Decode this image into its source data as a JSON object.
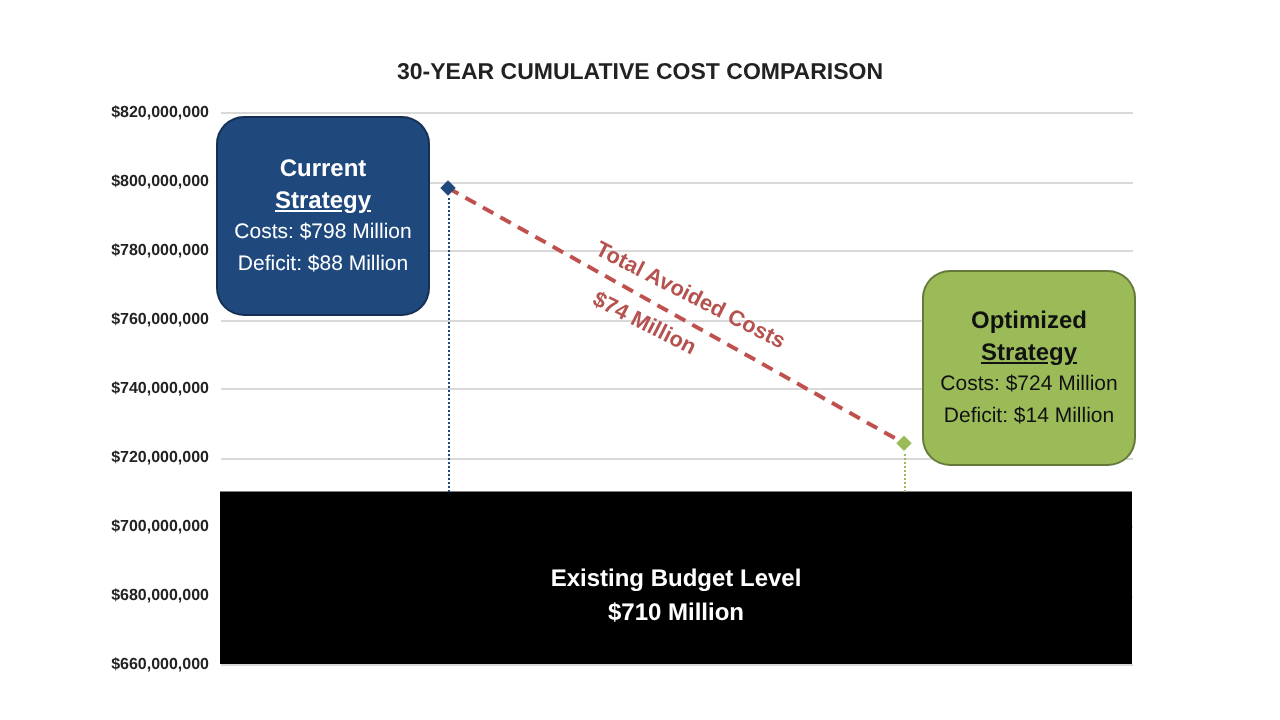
{
  "chart_data": {
    "type": "scatter",
    "title": "30-YEAR CUMULATIVE COST COMPARISON",
    "categories": [
      null,
      null
    ],
    "series": [
      {
        "type": "line",
        "color": "#c0504d",
        "values": [
          798000000,
          724000000
        ],
        "line_style": "dashed",
        "marker": "none"
      },
      {
        "type": "scatter",
        "colors": [
          "#1f497d",
          "#9bbb59"
        ],
        "values": [
          798000000,
          724000000
        ],
        "marker": "diamond"
      }
    ],
    "ylim": [
      660000000,
      820000000
    ],
    "yticks": [
      {
        "value": 660000000,
        "label": "$660,000,000"
      },
      {
        "value": 680000000,
        "label": "$680,000,000"
      },
      {
        "value": 700000000,
        "label": "$700,000,000"
      },
      {
        "value": 720000000,
        "label": "$720,000,000"
      },
      {
        "value": 740000000,
        "label": "$740,000,000"
      },
      {
        "value": 760000000,
        "label": "$760,000,000"
      },
      {
        "value": 780000000,
        "label": "$780,000,000"
      },
      {
        "value": 800000000,
        "label": "$800,000,000"
      },
      {
        "value": 820000000,
        "label": "$820,000,000"
      }
    ],
    "grid": "y",
    "bands": [
      {
        "axis": "y",
        "from": 660000000,
        "to": 710000000,
        "label": "Existing Budget Level\n$710 Million",
        "color": "#000000"
      }
    ],
    "annotations": [
      "Current",
      "Strategy",
      "Costs: $798 Million",
      "Deficit: $88 Million",
      "Total Avoided Costs",
      "$74 Million",
      "Optimized",
      "Strategy",
      "Costs: $724 Million",
      "Deficit: $14 Million"
    ]
  }
}
